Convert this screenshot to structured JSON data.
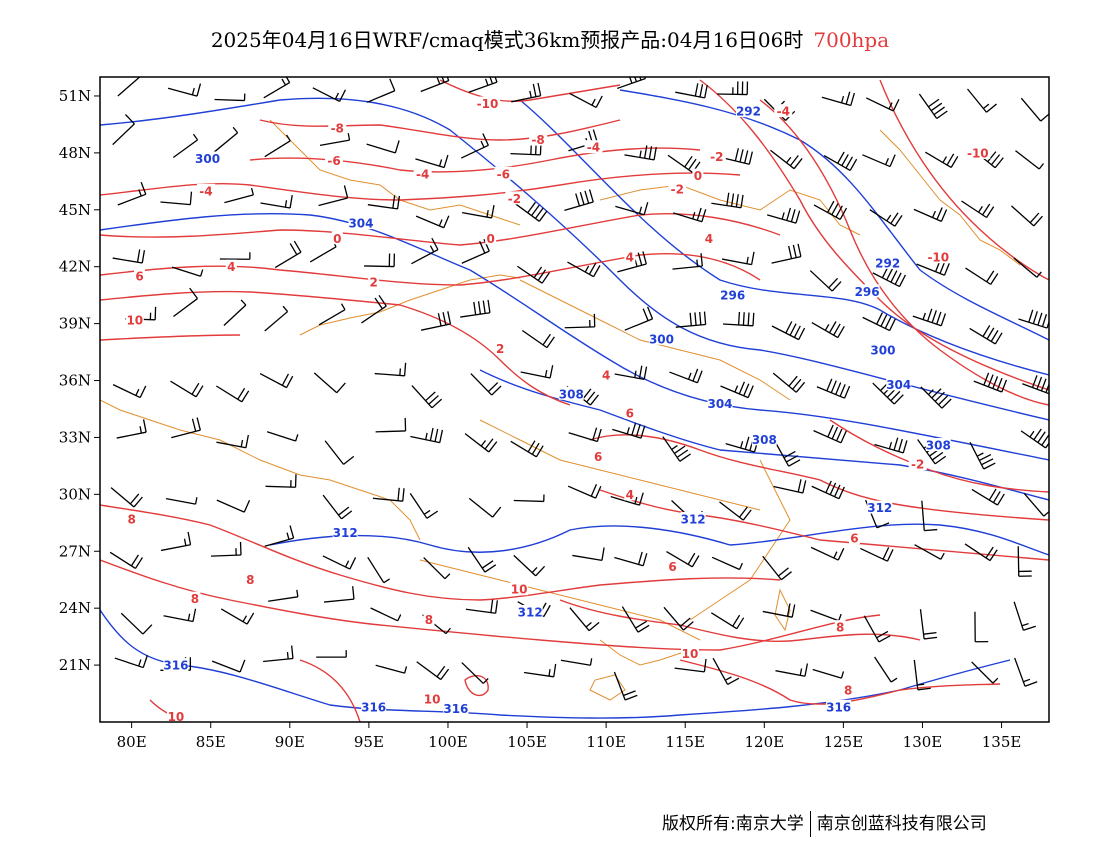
{
  "title": {
    "main": "2025年04月16日WRF/cmaq模式36km预报产品:04月16日06时",
    "level": "700hpa"
  },
  "copyright": {
    "left": "版权所有:南京大学",
    "right": "南京创蓝科技有限公司"
  },
  "axes": {
    "lon_labels": [
      "80E",
      "85E",
      "90E",
      "95E",
      "100E",
      "105E",
      "110E",
      "115E",
      "120E",
      "125E",
      "130E",
      "135E"
    ],
    "lat_labels": [
      "51N",
      "48N",
      "45N",
      "42N",
      "39N",
      "36N",
      "33N",
      "30N",
      "27N",
      "24N",
      "21N"
    ]
  },
  "colors": {
    "temperature": "#e23b3b",
    "height": "#1f3fd6",
    "border": "#e0902e",
    "wind": "#000000",
    "title_level": "#e23b3b"
  },
  "chart_data": {
    "type": "contour_map",
    "lon_range": [
      78,
      138
    ],
    "lat_range": [
      18,
      52
    ],
    "height_contours": [
      {
        "value": "292",
        "label_points": [
          [
            119.0,
            50.2
          ],
          [
            127.8,
            42.2
          ]
        ]
      },
      {
        "value": "296",
        "label_points": [
          [
            118.0,
            40.5
          ],
          [
            126.5,
            40.7
          ]
        ]
      },
      {
        "value": "300",
        "label_points": [
          [
            84.8,
            47.7
          ],
          [
            113.5,
            38.2
          ],
          [
            127.5,
            37.6
          ]
        ]
      },
      {
        "value": "304",
        "label_points": [
          [
            94.5,
            44.3
          ],
          [
            117.2,
            34.8
          ],
          [
            128.5,
            35.8
          ]
        ]
      },
      {
        "value": "308",
        "label_points": [
          [
            107.8,
            35.3
          ],
          [
            120.0,
            32.9
          ],
          [
            131.0,
            32.6
          ]
        ]
      },
      {
        "value": "312",
        "label_points": [
          [
            93.5,
            28.0
          ],
          [
            115.5,
            28.7
          ],
          [
            127.3,
            29.3
          ],
          [
            105.2,
            23.8
          ]
        ]
      },
      {
        "value": "316",
        "label_points": [
          [
            82.8,
            21.0
          ],
          [
            95.3,
            18.8
          ],
          [
            100.5,
            18.7
          ],
          [
            124.7,
            18.8
          ]
        ]
      }
    ],
    "temperature_contours": [
      {
        "value": "-10",
        "label_points": [
          [
            102.5,
            50.6
          ],
          [
            133.5,
            48.0
          ],
          [
            131.0,
            42.5
          ]
        ]
      },
      {
        "value": "-8",
        "label_points": [
          [
            93.0,
            49.3
          ],
          [
            105.7,
            48.7
          ]
        ]
      },
      {
        "value": "-6",
        "label_points": [
          [
            92.8,
            47.6
          ],
          [
            103.5,
            46.9
          ]
        ]
      },
      {
        "value": "-4",
        "label_points": [
          [
            84.7,
            46.0
          ],
          [
            98.4,
            46.9
          ],
          [
            109.2,
            48.3
          ],
          [
            121.2,
            50.2
          ]
        ]
      },
      {
        "value": "-2",
        "label_points": [
          [
            104.2,
            45.6
          ],
          [
            117.0,
            47.8
          ],
          [
            114.5,
            46.1
          ],
          [
            129.7,
            31.6
          ]
        ]
      },
      {
        "value": "0",
        "label_points": [
          [
            93.0,
            43.5
          ],
          [
            102.7,
            43.5
          ],
          [
            115.8,
            46.8
          ]
        ]
      },
      {
        "value": "2",
        "label_points": [
          [
            95.3,
            41.2
          ],
          [
            103.3,
            37.7
          ]
        ]
      },
      {
        "value": "4",
        "label_points": [
          [
            86.3,
            42.0
          ],
          [
            111.5,
            42.5
          ],
          [
            116.5,
            43.5
          ],
          [
            110.0,
            36.3
          ],
          [
            111.5,
            30.0
          ]
        ]
      },
      {
        "value": "6",
        "label_points": [
          [
            80.5,
            41.5
          ],
          [
            111.5,
            34.3
          ],
          [
            109.5,
            32.0
          ],
          [
            114.2,
            26.2
          ],
          [
            125.7,
            27.7
          ]
        ]
      },
      {
        "value": "8",
        "label_points": [
          [
            80.0,
            28.7
          ],
          [
            87.5,
            25.5
          ],
          [
            84.0,
            24.5
          ],
          [
            98.8,
            23.4
          ],
          [
            124.8,
            23.0
          ],
          [
            125.3,
            19.7
          ]
        ]
      },
      {
        "value": "10",
        "label_points": [
          [
            80.2,
            39.2
          ],
          [
            104.5,
            25.0
          ],
          [
            99.0,
            19.2
          ],
          [
            82.8,
            18.3
          ],
          [
            115.3,
            21.6
          ]
        ]
      }
    ],
    "wind_barbs_note": "700hPa wind barbs in knots"
  }
}
